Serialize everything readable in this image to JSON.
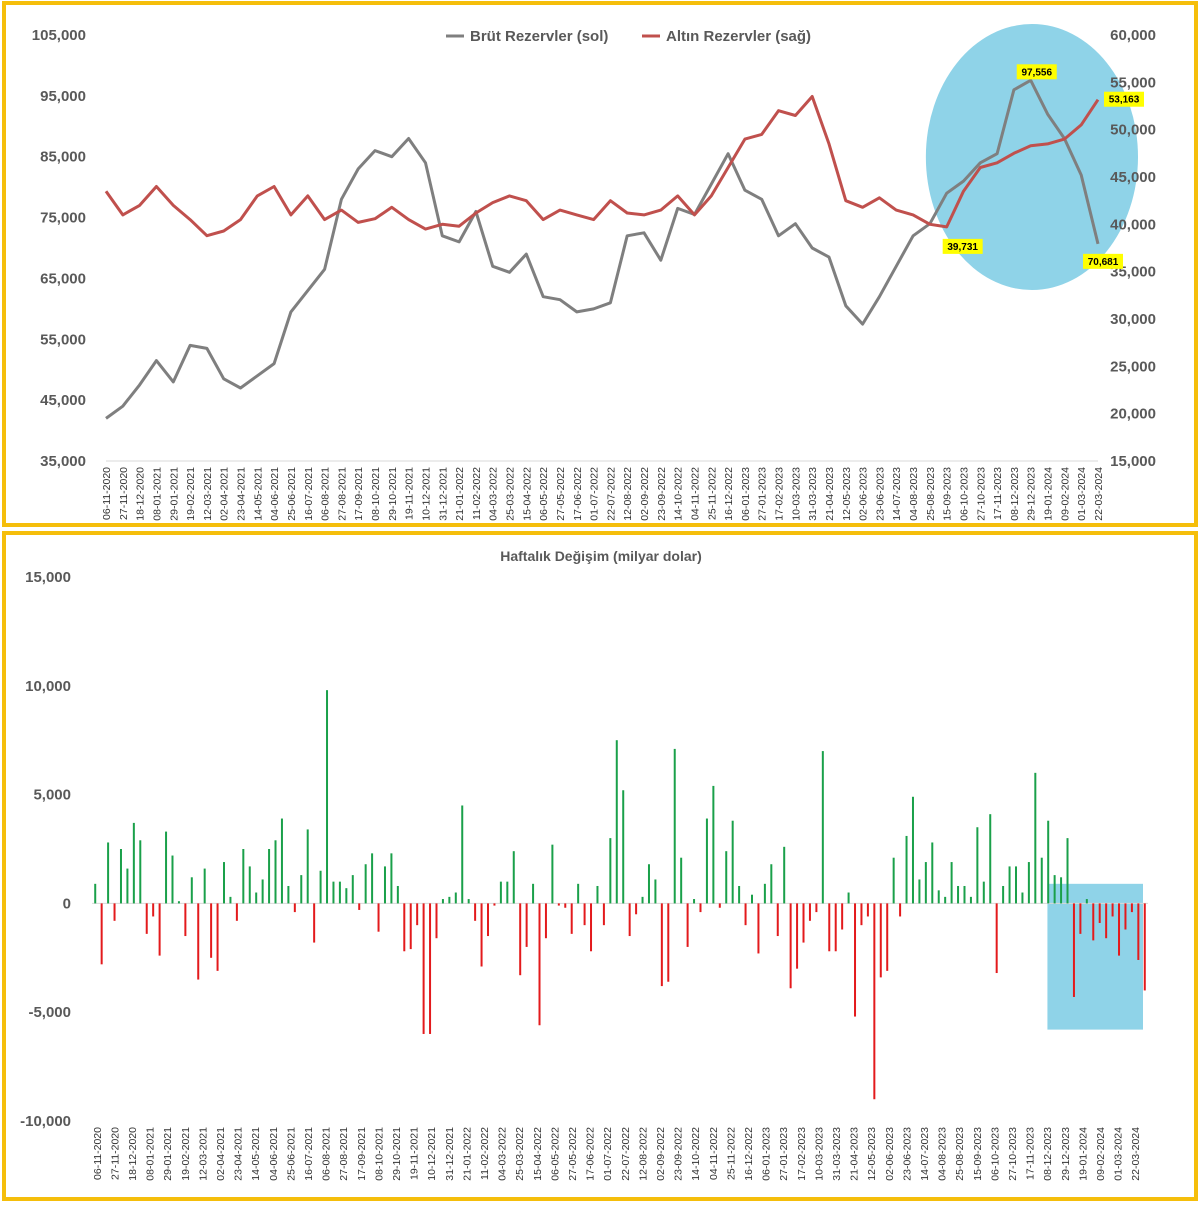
{
  "colors": {
    "frame": "#f5be0b",
    "gross_line": "#7f7f7f",
    "gold_line": "#c0504d",
    "positive_bar": "#1aa04a",
    "negative_bar": "#e31a1c",
    "highlight": "#8fd3e8",
    "callout_bg": "#ffff00"
  },
  "chart_data": [
    {
      "type": "line",
      "title": "",
      "legend_position": "top",
      "grid": false,
      "x": [
        "06-11-2020",
        "27-11-2020",
        "18-12-2020",
        "08-01-2021",
        "29-01-2021",
        "19-02-2021",
        "12-03-2021",
        "02-04-2021",
        "23-04-2021",
        "14-05-2021",
        "04-06-2021",
        "25-06-2021",
        "16-07-2021",
        "06-08-2021",
        "27-08-2021",
        "17-09-2021",
        "08-10-2021",
        "29-10-2021",
        "19-11-2021",
        "10-12-2021",
        "31-12-2021",
        "21-01-2022",
        "11-02-2022",
        "04-03-2022",
        "25-03-2022",
        "15-04-2022",
        "06-05-2022",
        "27-05-2022",
        "17-06-2022",
        "01-07-2022",
        "22-07-2022",
        "12-08-2022",
        "02-09-2022",
        "23-09-2022",
        "14-10-2022",
        "04-11-2022",
        "25-11-2022",
        "16-12-2022",
        "06-01-2023",
        "27-01-2023",
        "17-02-2023",
        "10-03-2023",
        "31-03-2023",
        "21-04-2023",
        "12-05-2023",
        "02-06-2023",
        "23-06-2023",
        "14-07-2023",
        "04-08-2023",
        "25-08-2023",
        "15-09-2023",
        "06-10-2023",
        "27-10-2023",
        "17-11-2023",
        "08-12-2023",
        "29-12-2023",
        "19-01-2024",
        "09-02-2024",
        "01-03-2024",
        "22-03-2024"
      ],
      "series": [
        {
          "name": "Brüt Rezervler (sol)",
          "axis": "left",
          "values": [
            42000,
            44000,
            47500,
            51500,
            48000,
            54000,
            53500,
            48500,
            47000,
            49000,
            51000,
            59500,
            63000,
            66500,
            78000,
            83000,
            86000,
            85000,
            88000,
            84000,
            72000,
            71000,
            76000,
            67000,
            66000,
            69000,
            62000,
            61500,
            59500,
            60000,
            61000,
            72000,
            72500,
            68000,
            76500,
            75500,
            80500,
            85500,
            79500,
            78000,
            72000,
            74000,
            70000,
            68500,
            60500,
            57500,
            62000,
            67000,
            72000,
            74000,
            79000,
            81000,
            84000,
            85500,
            96000,
            97556,
            92000,
            88000,
            82000,
            70681
          ]
        },
        {
          "name": "Altın Rezervler (sağ)",
          "axis": "right",
          "values": [
            43500,
            41000,
            42000,
            44000,
            42000,
            40500,
            38800,
            39300,
            40500,
            43000,
            44000,
            41000,
            43000,
            40500,
            41500,
            40200,
            40600,
            41800,
            40500,
            39500,
            40000,
            39800,
            41200,
            42300,
            43000,
            42500,
            40500,
            41500,
            41000,
            40500,
            42500,
            41200,
            41000,
            41500,
            43000,
            41000,
            43000,
            46000,
            49000,
            49500,
            52000,
            51500,
            53500,
            48500,
            42500,
            41800,
            42800,
            41500,
            41000,
            40000,
            39731,
            43500,
            46000,
            46500,
            47500,
            48300,
            48500,
            49000,
            50500,
            53163
          ]
        }
      ],
      "left_axis": {
        "min": 35000,
        "max": 105000,
        "ticks": [
          "35,000",
          "45,000",
          "55,000",
          "65,000",
          "75,000",
          "85,000",
          "95,000",
          "105,000"
        ]
      },
      "right_axis": {
        "min": 15000,
        "max": 60000,
        "ticks": [
          "15,000",
          "20,000",
          "25,000",
          "30,000",
          "35,000",
          "40,000",
          "45,000",
          "50,000",
          "55,000",
          "60,000"
        ]
      },
      "annotations": [
        {
          "label": "97,556",
          "series": 0,
          "index": 55
        },
        {
          "label": "39,731",
          "series": 1,
          "index": 50
        },
        {
          "label": "70,681",
          "series": 0,
          "index": 59
        },
        {
          "label": "53,163",
          "series": 1,
          "index": 59
        }
      ],
      "highlight_from_index": 49
    },
    {
      "type": "bar",
      "title": "Haftalık Değişim (milyar dolar)",
      "grid": false,
      "x_labels": [
        "06-11-2020",
        "27-11-2020",
        "18-12-2020",
        "08-01-2021",
        "29-01-2021",
        "19-02-2021",
        "12-03-2021",
        "02-04-2021",
        "23-04-2021",
        "14-05-2021",
        "04-06-2021",
        "25-06-2021",
        "16-07-2021",
        "06-08-2021",
        "27-08-2021",
        "17-09-2021",
        "08-10-2021",
        "29-10-2021",
        "19-11-2021",
        "10-12-2021",
        "31-12-2021",
        "21-01-2022",
        "11-02-2022",
        "04-03-2022",
        "25-03-2022",
        "15-04-2022",
        "06-05-2022",
        "27-05-2022",
        "17-06-2022",
        "01-07-2022",
        "22-07-2022",
        "12-08-2022",
        "02-09-2022",
        "23-09-2022",
        "14-10-2022",
        "04-11-2022",
        "25-11-2022",
        "16-12-2022",
        "06-01-2023",
        "27-01-2023",
        "17-02-2023",
        "10-03-2023",
        "31-03-2023",
        "21-04-2023",
        "12-05-2023",
        "02-06-2023",
        "23-06-2023",
        "14-07-2023",
        "04-08-2023",
        "25-08-2023",
        "15-09-2023",
        "06-10-2023",
        "27-10-2023",
        "17-11-2023",
        "08-12-2023",
        "29-12-2023",
        "19-01-2024",
        "09-02-2024",
        "01-03-2024",
        "22-03-2024"
      ],
      "values": [
        900,
        -2800,
        2800,
        -800,
        2500,
        1600,
        3700,
        2900,
        -1400,
        -600,
        -2400,
        3300,
        2200,
        100,
        -1500,
        1200,
        -3500,
        1600,
        -2500,
        -3100,
        1900,
        300,
        -800,
        2500,
        1700,
        500,
        1100,
        2500,
        2900,
        3900,
        800,
        -400,
        1300,
        3400,
        -1800,
        1500,
        9800,
        1000,
        1000,
        700,
        1300,
        -300,
        1800,
        2300,
        -1300,
        1700,
        2300,
        800,
        -2200,
        -2100,
        -1000,
        -6000,
        -6000,
        -1600,
        200,
        300,
        500,
        4500,
        200,
        -800,
        -2900,
        -1500,
        -100,
        1000,
        1000,
        2400,
        -3300,
        -2000,
        900,
        -5600,
        -1600,
        2700,
        -100,
        -200,
        -1400,
        900,
        -1000,
        -2200,
        800,
        -1000,
        3000,
        7500,
        5200,
        -1500,
        -500,
        300,
        1800,
        1100,
        -3800,
        -3600,
        7100,
        2100,
        -2000,
        200,
        -400,
        3900,
        5400,
        -200,
        2400,
        3800,
        800,
        -1000,
        400,
        -2300,
        900,
        1800,
        -1500,
        2600,
        -3900,
        -3000,
        -1800,
        -800,
        -400,
        7000,
        -2200,
        -2200,
        -1200,
        500,
        -5200,
        -1000,
        -600,
        -9000,
        -3400,
        -3100,
        2100,
        -600,
        3100,
        4900,
        1100,
        1900,
        2800,
        600,
        300,
        1900,
        800,
        800,
        300,
        3500,
        1000,
        4100,
        -3200,
        800,
        1700,
        1700,
        500,
        1900,
        6000,
        2100,
        3800,
        1300,
        1200,
        3000,
        -4300,
        -1400,
        200,
        -1700,
        -900,
        -1600,
        -600,
        -2400,
        -1200,
        -400,
        -2600,
        -4000
      ],
      "y_axis": {
        "min": -10000,
        "max": 15000,
        "ticks": [
          "-10,000",
          "-5,000",
          "0",
          "5,000",
          "10,000",
          "15,000"
        ]
      },
      "highlight_last_n": 15
    }
  ]
}
